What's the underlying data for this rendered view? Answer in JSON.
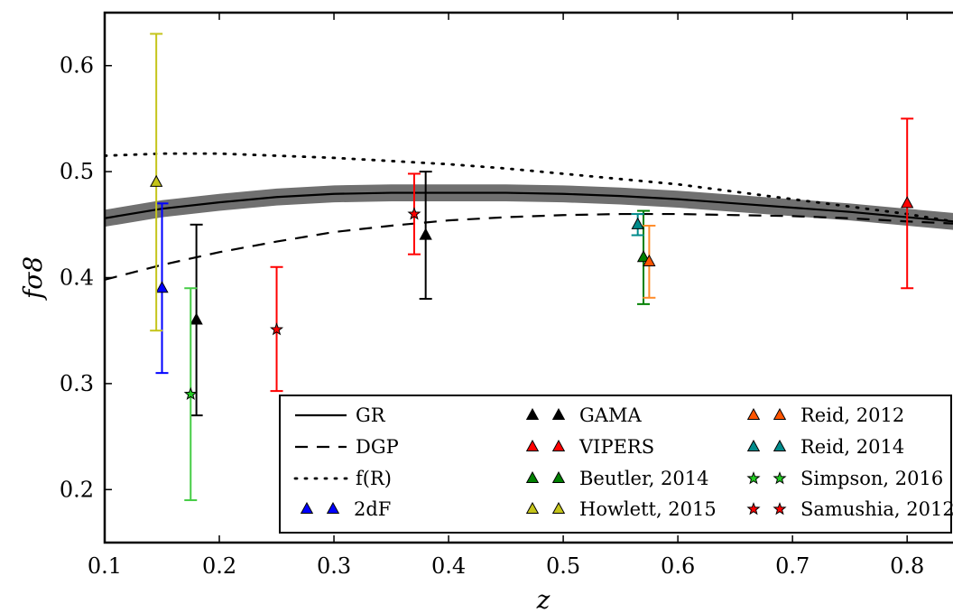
{
  "chart_data": {
    "type": "scatter",
    "xlabel": "z",
    "ylabel": "fσ8",
    "xlim": [
      0.1,
      0.84
    ],
    "ylim": [
      0.15,
      0.65
    ],
    "xticks": [
      "0.1",
      "0.2",
      "0.3",
      "0.4",
      "0.5",
      "0.6",
      "0.7",
      "0.8"
    ],
    "yticks": [
      "0.2",
      "0.3",
      "0.4",
      "0.5",
      "0.6"
    ],
    "grid": false,
    "legend_placement": "lower-right",
    "models": [
      {
        "name": "GR",
        "style": "solid",
        "color": "#000000",
        "band": true,
        "band_color": "#707070",
        "band_halfwidth": 0.008,
        "x": [
          0.1,
          0.15,
          0.2,
          0.25,
          0.3,
          0.35,
          0.4,
          0.45,
          0.5,
          0.55,
          0.6,
          0.65,
          0.7,
          0.75,
          0.8,
          0.84
        ],
        "y": [
          0.456,
          0.465,
          0.471,
          0.476,
          0.479,
          0.48,
          0.48,
          0.48,
          0.479,
          0.477,
          0.474,
          0.47,
          0.466,
          0.462,
          0.457,
          0.453
        ]
      },
      {
        "name": "DGP",
        "style": "dashed",
        "color": "#000000",
        "x": [
          0.1,
          0.15,
          0.2,
          0.25,
          0.3,
          0.35,
          0.4,
          0.45,
          0.5,
          0.55,
          0.6,
          0.65,
          0.7,
          0.75,
          0.8,
          0.84
        ],
        "y": [
          0.398,
          0.412,
          0.424,
          0.434,
          0.443,
          0.449,
          0.454,
          0.457,
          0.459,
          0.46,
          0.46,
          0.459,
          0.458,
          0.456,
          0.453,
          0.451
        ]
      },
      {
        "name": "f(R)",
        "style": "dotted",
        "color": "#000000",
        "x": [
          0.1,
          0.15,
          0.2,
          0.25,
          0.3,
          0.35,
          0.4,
          0.45,
          0.5,
          0.55,
          0.6,
          0.65,
          0.7,
          0.75,
          0.8,
          0.84
        ],
        "y": [
          0.515,
          0.517,
          0.517,
          0.515,
          0.513,
          0.51,
          0.507,
          0.503,
          0.498,
          0.493,
          0.488,
          0.481,
          0.474,
          0.467,
          0.46,
          0.453
        ]
      }
    ],
    "datasets": [
      {
        "name": "2dF",
        "marker": "triangle",
        "color": "#0000ff",
        "ecolor": "#0000ff",
        "points": [
          {
            "x": 0.15,
            "y": 0.39,
            "lo": 0.31,
            "hi": 0.47
          }
        ]
      },
      {
        "name": "GAMA",
        "marker": "triangle",
        "color": "#000000",
        "ecolor": "#000000",
        "points": [
          {
            "x": 0.18,
            "y": 0.36,
            "lo": 0.27,
            "hi": 0.45
          },
          {
            "x": 0.38,
            "y": 0.44,
            "lo": 0.38,
            "hi": 0.5
          }
        ]
      },
      {
        "name": "VIPERS",
        "marker": "triangle",
        "color": "#ff0000",
        "ecolor": "#ff0000",
        "points": [
          {
            "x": 0.8,
            "y": 0.47,
            "lo": 0.39,
            "hi": 0.55
          }
        ]
      },
      {
        "name": "Beutler, 2014",
        "marker": "triangle",
        "color": "#008000",
        "ecolor": "#008000",
        "points": [
          {
            "x": 0.57,
            "y": 0.419,
            "lo": 0.375,
            "hi": 0.463
          }
        ]
      },
      {
        "name": "Howlett, 2015",
        "marker": "triangle",
        "color": "#c4c41a",
        "ecolor": "#c4c41a",
        "points": [
          {
            "x": 0.145,
            "y": 0.49,
            "lo": 0.35,
            "hi": 0.63
          }
        ]
      },
      {
        "name": "Reid, 2012",
        "marker": "triangle",
        "color": "#ff5500",
        "ecolor": "#ff8c2a",
        "points": [
          {
            "x": 0.575,
            "y": 0.415,
            "lo": 0.381,
            "hi": 0.449
          }
        ]
      },
      {
        "name": "Reid, 2014",
        "marker": "triangle",
        "color": "#008b8b",
        "ecolor": "#008b8b",
        "points": [
          {
            "x": 0.565,
            "y": 0.45,
            "lo": 0.44,
            "hi": 0.46
          }
        ]
      },
      {
        "name": "Simpson, 2016",
        "marker": "star",
        "color": "#22cc22",
        "ecolor": "#44cc44",
        "points": [
          {
            "x": 0.175,
            "y": 0.29,
            "lo": 0.19,
            "hi": 0.39
          }
        ]
      },
      {
        "name": "Samushia, 2012",
        "marker": "star",
        "color": "#ff0000",
        "ecolor": "#ff0000",
        "points": [
          {
            "x": 0.25,
            "y": 0.351,
            "lo": 0.293,
            "hi": 0.41
          },
          {
            "x": 0.37,
            "y": 0.46,
            "lo": 0.422,
            "hi": 0.498
          }
        ]
      }
    ],
    "legend": {
      "columns": [
        [
          "GR",
          "DGP",
          "f(R)",
          "2dF"
        ],
        [
          "GAMA",
          "VIPERS",
          "Beutler, 2014",
          "Howlett, 2015"
        ],
        [
          "Reid, 2012",
          "Reid, 2014",
          "Simpson, 2016",
          "Samushia, 2012"
        ]
      ]
    }
  }
}
